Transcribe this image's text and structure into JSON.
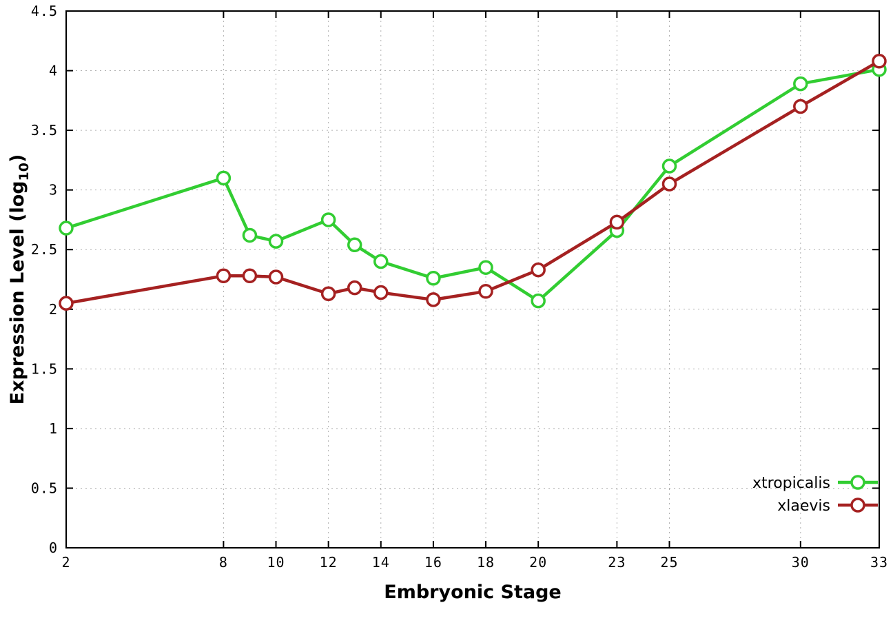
{
  "chart_data": {
    "type": "line",
    "title": "",
    "xlabel": "Embryonic Stage",
    "ylabel": "Expression Level (log10)",
    "ylabel_parts": {
      "pre": "Expression Level (log",
      "sub": "10",
      "post": ")"
    },
    "xlim": [
      2,
      33
    ],
    "ylim": [
      0,
      4.5
    ],
    "grid": true,
    "grid_color": "#b0b0b0",
    "legend_position": "bottom-right",
    "background": "#ffffff",
    "xticks": [
      2,
      8,
      10,
      12,
      14,
      16,
      18,
      20,
      23,
      25,
      30,
      33
    ],
    "xtick_labels": [
      "2",
      "8",
      "10",
      "12",
      "14",
      "16",
      "18",
      "20",
      "23",
      "25",
      "30",
      "33"
    ],
    "yticks": [
      0,
      0.5,
      1,
      1.5,
      2,
      2.5,
      3,
      3.5,
      4,
      4.5
    ],
    "ytick_labels": [
      "0",
      "0.5",
      "1",
      "1.5",
      "2",
      "2.5",
      "3",
      "3.5",
      "4",
      "4.5"
    ],
    "x": [
      2,
      8,
      9,
      10,
      12,
      13,
      14,
      16,
      18,
      20,
      23,
      25,
      30,
      33
    ],
    "series": [
      {
        "name": "xtropicalis",
        "color": "#32cd32",
        "values": [
          2.68,
          3.1,
          2.62,
          2.57,
          2.75,
          2.54,
          2.4,
          2.26,
          2.35,
          2.07,
          2.66,
          3.2,
          3.89,
          4.01
        ]
      },
      {
        "name": "xlaevis",
        "color": "#a52121",
        "values": [
          2.05,
          2.28,
          2.28,
          2.27,
          2.13,
          2.18,
          2.14,
          2.08,
          2.15,
          2.33,
          2.73,
          3.05,
          3.7,
          4.08
        ]
      }
    ]
  }
}
